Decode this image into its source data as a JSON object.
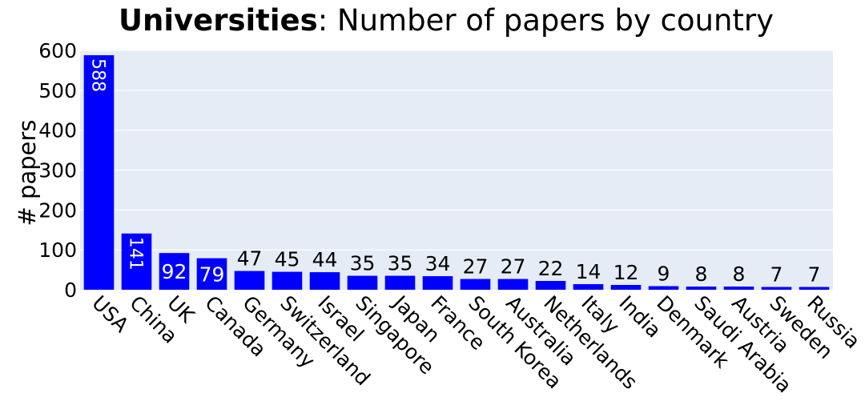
{
  "chart_data": {
    "type": "bar",
    "title_bold": "Universities",
    "title_rest": ": Number of papers by country",
    "xlabel": "",
    "ylabel": "# papers",
    "ylim": [
      0,
      600
    ],
    "yticks": [
      0,
      100,
      200,
      300,
      400,
      500,
      600
    ],
    "grid": true,
    "categories": [
      "USA",
      "China",
      "UK",
      "Canada",
      "Germany",
      "Switzerland",
      "Israel",
      "Singapore",
      "Japan",
      "France",
      "South Korea",
      "Australia",
      "Netherlands",
      "Italy",
      "India",
      "Denmark",
      "Saudi Arabia",
      "Austria",
      "Sweden",
      "Russia"
    ],
    "values": [
      588,
      141,
      92,
      79,
      47,
      45,
      44,
      35,
      35,
      34,
      27,
      27,
      22,
      14,
      12,
      9,
      8,
      8,
      7,
      7
    ],
    "bar_color": "#0000ff",
    "plot_background": "#e5ecf6",
    "grid_color": "#ffffff"
  }
}
